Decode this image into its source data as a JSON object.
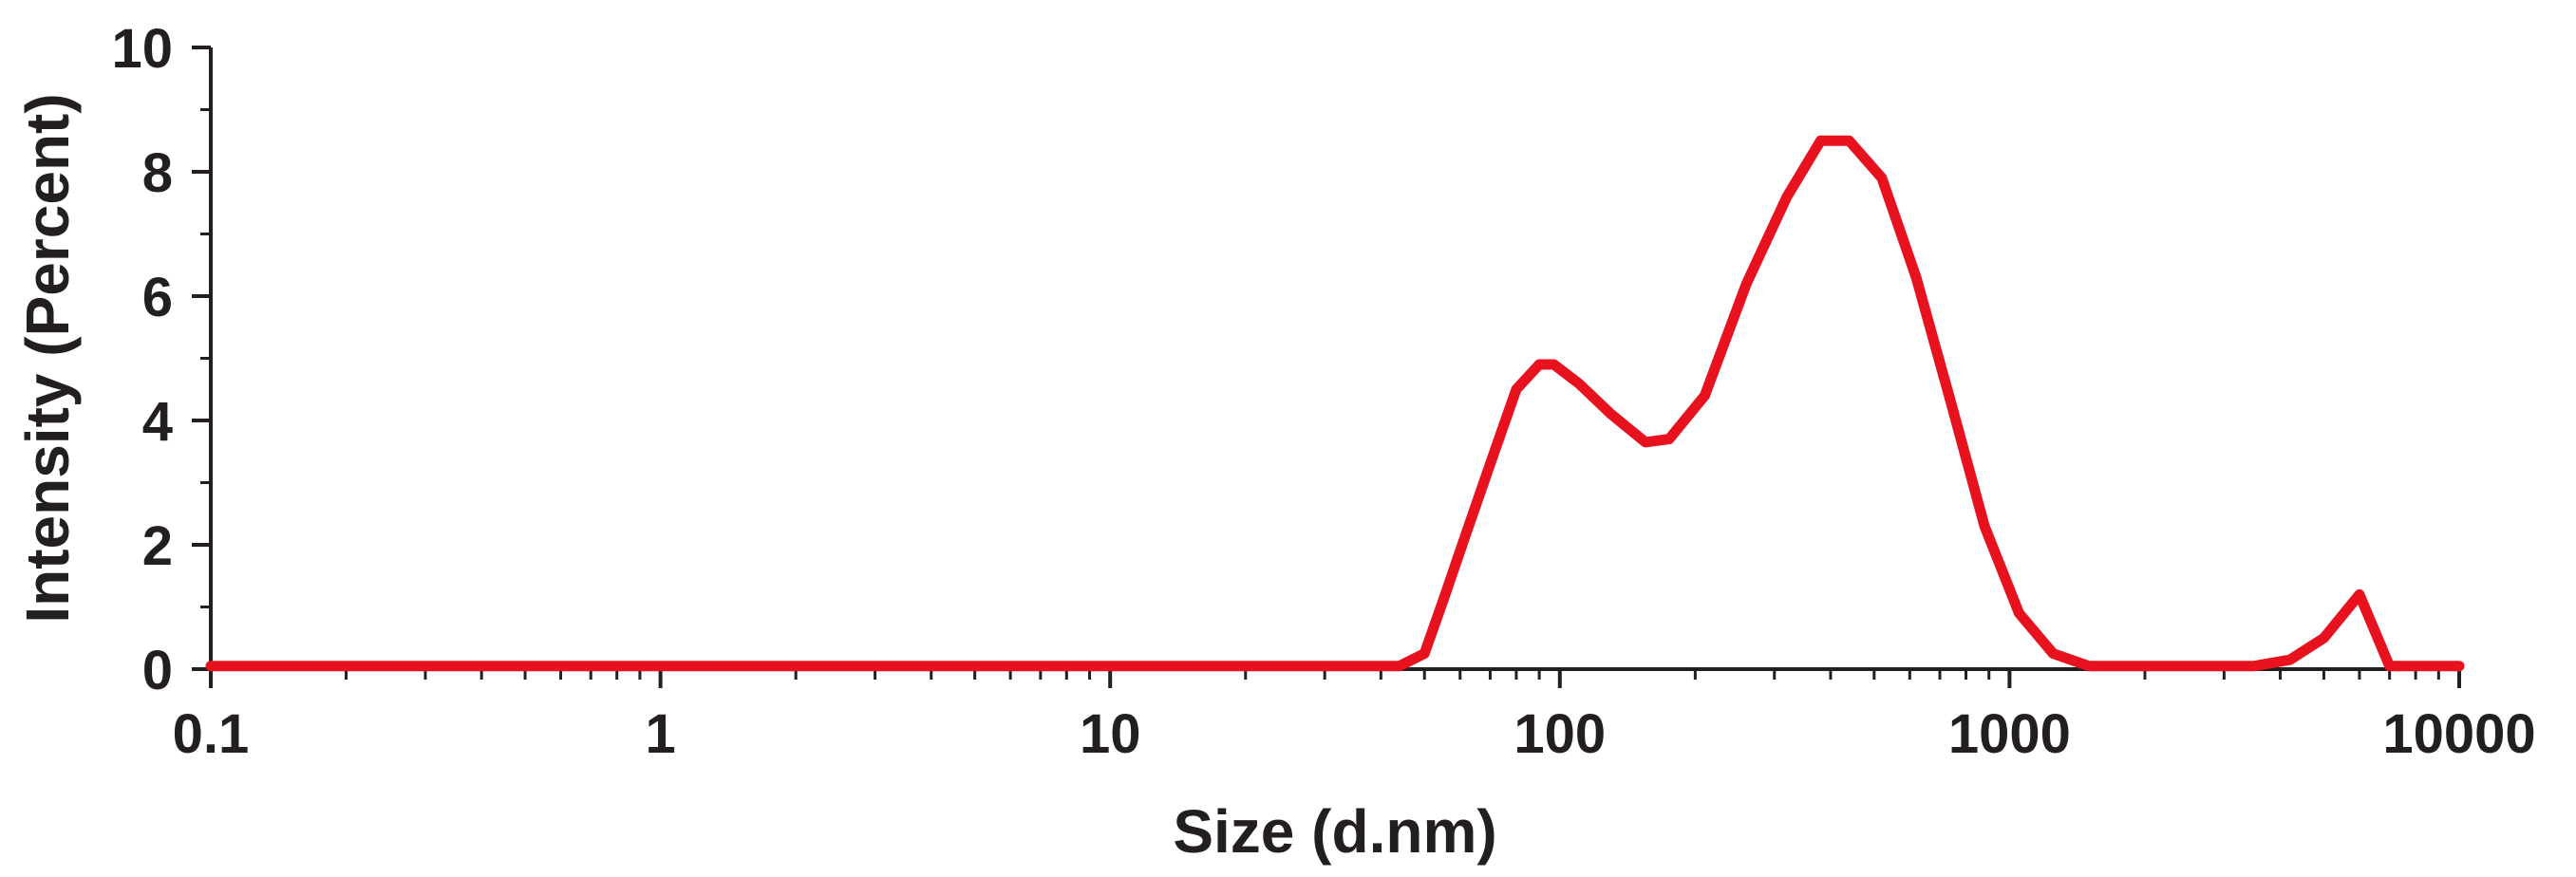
{
  "chart_data": {
    "type": "line",
    "title": "",
    "xlabel": "Size (d.nm)",
    "ylabel": "Intensity (Percent)",
    "xscale": "log",
    "xlim": [
      0.1,
      10000
    ],
    "ylim": [
      0,
      10
    ],
    "grid": false,
    "x_ticks": [
      0.1,
      1,
      10,
      100,
      1000,
      10000
    ],
    "x_tick_labels": [
      "0.1",
      "1",
      "10",
      "100",
      "1000",
      "10000"
    ],
    "y_ticks": [
      0,
      2,
      4,
      6,
      8,
      10
    ],
    "y_tick_labels": [
      "0",
      "2",
      "4",
      "6",
      "8",
      "10"
    ],
    "line_color": "#e8121f",
    "axis_color": "#231f20",
    "series": [
      {
        "x": [
          0.1,
          1,
          10,
          30,
          44,
          50,
          55,
          62,
          70,
          80,
          90,
          97,
          110,
          130,
          155,
          175,
          210,
          260,
          320,
          380,
          440,
          520,
          620,
          740,
          880,
          1050,
          1250,
          1500,
          1800,
          2500,
          3500,
          4200,
          5000,
          6000,
          7000,
          8500,
          10000
        ],
        "y": [
          0.05,
          0.05,
          0.05,
          0.05,
          0.05,
          0.25,
          1.1,
          2.2,
          3.3,
          4.5,
          4.9,
          4.9,
          4.6,
          4.1,
          3.65,
          3.7,
          4.4,
          6.2,
          7.6,
          8.5,
          8.5,
          7.9,
          6.3,
          4.3,
          2.3,
          0.9,
          0.25,
          0.05,
          0.05,
          0.05,
          0.05,
          0.15,
          0.5,
          1.2,
          0.05,
          0.05,
          0.05
        ]
      }
    ]
  }
}
